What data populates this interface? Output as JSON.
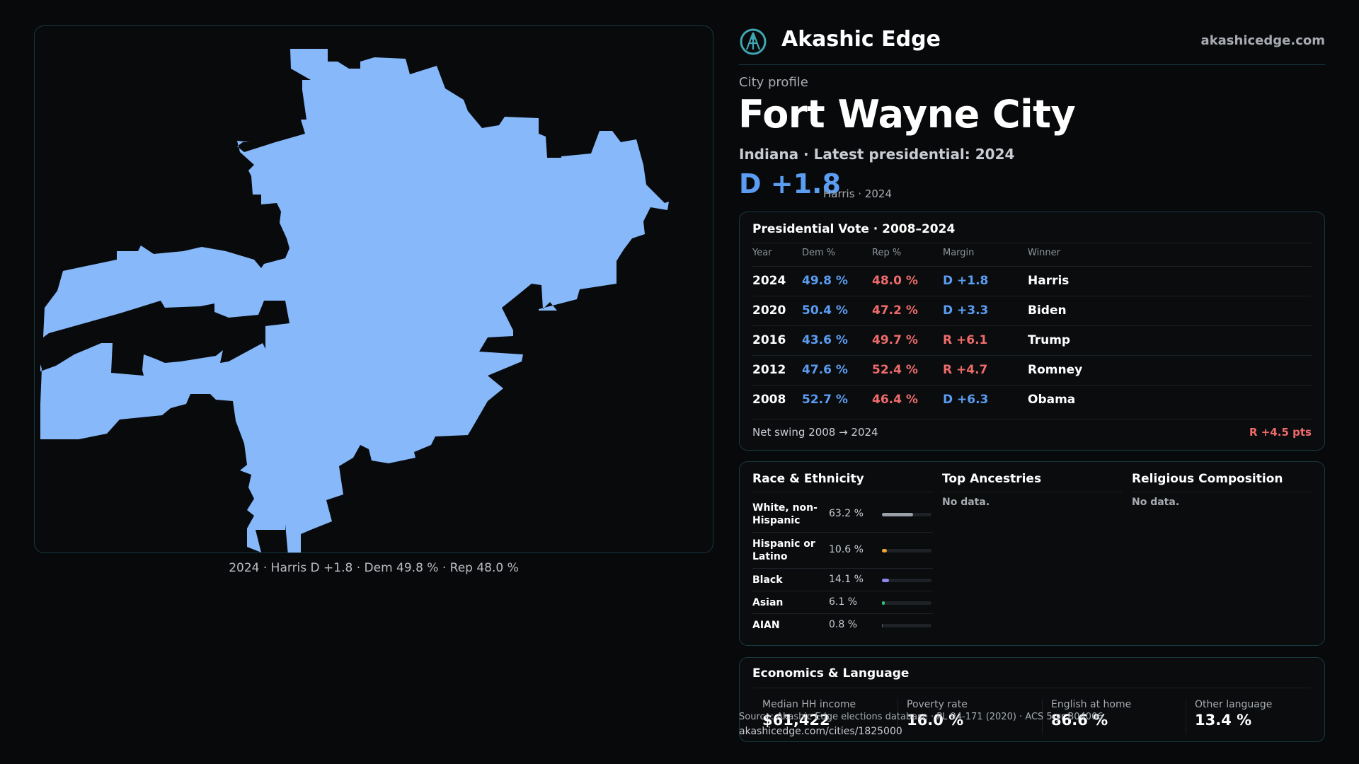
{
  "brand": {
    "name": "Akashic Edge",
    "domain": "akashicedge.com",
    "logo_icon": "akashic-compass-icon",
    "accent_color": "#3fa6b3"
  },
  "map": {
    "fill_color": "#86b8fa",
    "caption": "2024 · Harris D +1.8 · Dem 49.8 % · Rep 48.0 %"
  },
  "profile": {
    "eyebrow": "City profile",
    "title": "Fort Wayne City",
    "subtitle": "Indiana · Latest presidential: 2024",
    "headline_margin": "D +1.8",
    "headline_note": "Harris · 2024"
  },
  "vote": {
    "title": "Presidential Vote · 2008–2024",
    "columns": [
      "Year",
      "Dem %",
      "Rep %",
      "Margin",
      "Winner"
    ],
    "rows": [
      {
        "year": "2024",
        "dem": "49.8 %",
        "rep": "48.0 %",
        "margin": "D +1.8",
        "winner": "Harris"
      },
      {
        "year": "2020",
        "dem": "50.4 %",
        "rep": "47.2 %",
        "margin": "D +3.3",
        "winner": "Biden"
      },
      {
        "year": "2016",
        "dem": "43.6 %",
        "rep": "49.7 %",
        "margin": "R +6.1",
        "winner": "Trump"
      },
      {
        "year": "2012",
        "dem": "47.6 %",
        "rep": "52.4 %",
        "margin": "R +4.7",
        "winner": "Romney"
      },
      {
        "year": "2008",
        "dem": "52.7 %",
        "rep": "46.4 %",
        "margin": "D +6.3",
        "winner": "Obama"
      }
    ],
    "net_swing_label": "Net swing 2008 → 2024",
    "net_swing_value": "R +4.5 pts",
    "dem_color": "#5b9df3",
    "rep_color": "#f06b6b"
  },
  "race": {
    "title": "Race & Ethnicity",
    "rows": [
      {
        "label": "White, non-Hispanic",
        "pct": "63.2 %",
        "value": 63.2,
        "color": "#9aa0a8"
      },
      {
        "label": "Hispanic or Latino",
        "pct": "10.6 %",
        "value": 10.6,
        "color": "#f0a431"
      },
      {
        "label": "Black",
        "pct": "14.1 %",
        "value": 14.1,
        "color": "#8f86f0"
      },
      {
        "label": "Asian",
        "pct": "6.1 %",
        "value": 6.1,
        "color": "#2fc27a"
      },
      {
        "label": "AIAN",
        "pct": "0.8 %",
        "value": 0.8,
        "color": "#5a6068"
      }
    ]
  },
  "ancestries": {
    "title": "Top Ancestries",
    "empty": "No data."
  },
  "religion": {
    "title": "Religious Composition",
    "empty": "No data."
  },
  "economics": {
    "title": "Economics & Language",
    "items": [
      {
        "label": "Median HH income",
        "value": "$61,422"
      },
      {
        "label": "Poverty rate",
        "value": "16.0 %"
      },
      {
        "label": "English at home",
        "value": "86.6 %"
      },
      {
        "label": "Other language",
        "value": "13.4 %"
      }
    ]
  },
  "footer": {
    "source": "Source: Akashic Edge elections database · PL 94-171 (2020) · ACS 5-yr B04006",
    "url": "akashicedge.com/cities/1825000"
  }
}
